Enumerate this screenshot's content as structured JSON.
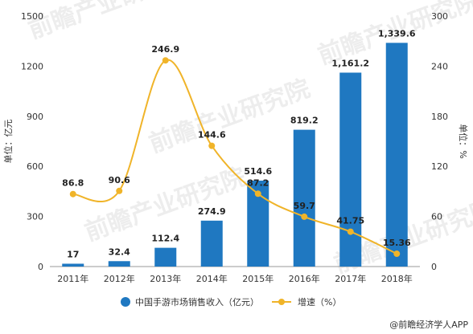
{
  "chart_data": {
    "type": "bar+line",
    "categories": [
      "2011年",
      "2012年",
      "2013年",
      "2014年",
      "2015年",
      "2016年",
      "2017年",
      "2018年"
    ],
    "series": [
      {
        "name": "中国手游市场销售收入（亿元）",
        "type": "bar",
        "axis": "left",
        "values": [
          17,
          32.4,
          112.4,
          274.9,
          514.6,
          819.2,
          1161.2,
          1339.6
        ],
        "labels": [
          "17",
          "32.4",
          "112.4",
          "274.9",
          "514.6",
          "819.2",
          "1,161.2",
          "1,339.6"
        ],
        "color": "#1f78c1"
      },
      {
        "name": "增速（%）",
        "type": "line",
        "axis": "right",
        "values": [
          86.8,
          90.6,
          246.9,
          144.6,
          87.2,
          59.7,
          41.75,
          15.36
        ],
        "labels": [
          "86.8",
          "90.6",
          "246.9",
          "144.6",
          "87.2",
          "59.7",
          "41.75",
          "15.36"
        ],
        "color": "#f0b429"
      }
    ],
    "ylabel_left": "单位：亿元",
    "ylabel_right": "单位：%",
    "ylim_left": [
      0,
      1500
    ],
    "ylim_right": [
      0,
      300
    ],
    "yticks_left": [
      "0",
      "300",
      "600",
      "900",
      "1200",
      "1500"
    ],
    "yticks_right": [
      "0",
      "60",
      "120",
      "180",
      "240",
      "300"
    ],
    "grid": false,
    "legend_position": "bottom"
  },
  "watermark": {
    "text": "前瞻产业研究院",
    "credit": "@前瞻经济学人APP"
  }
}
